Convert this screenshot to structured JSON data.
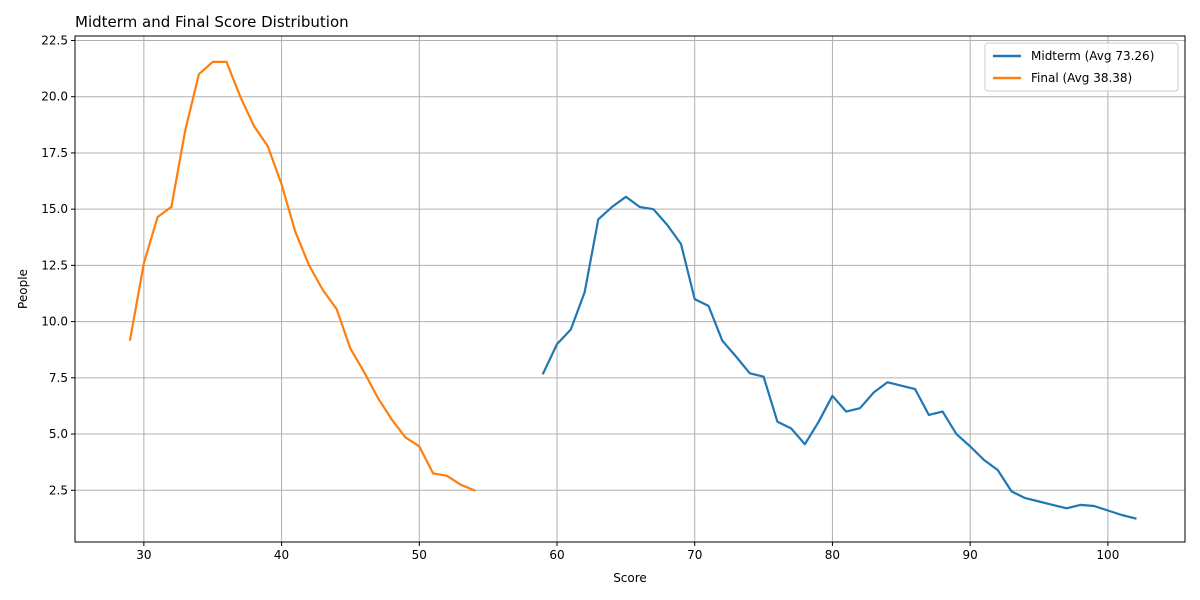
{
  "chart_data": {
    "type": "line",
    "title": "Midterm and Final Score Distribution",
    "xlabel": "Score",
    "ylabel": "People",
    "xlim": [
      25,
      105.6
    ],
    "ylim": [
      0.2,
      22.7
    ],
    "xticks": [
      30,
      40,
      50,
      60,
      70,
      80,
      90,
      100
    ],
    "yticks": [
      2.5,
      5.0,
      7.5,
      10.0,
      12.5,
      15.0,
      17.5,
      20.0,
      22.5
    ],
    "xtick_labels": [
      "30",
      "40",
      "50",
      "60",
      "70",
      "80",
      "90",
      "100"
    ],
    "ytick_labels": [
      "2.5",
      "5.0",
      "7.5",
      "10.0",
      "12.5",
      "15.0",
      "17.5",
      "20.0",
      "22.5"
    ],
    "grid": true,
    "legend_position": "top-right",
    "series": [
      {
        "name": "Midterm (Avg 73.26)",
        "color": "#1f77b4",
        "x": [
          59,
          60,
          61,
          62,
          63,
          64,
          65,
          66,
          67,
          68,
          69,
          70,
          71,
          72,
          73,
          74,
          75,
          76,
          77,
          78,
          79,
          80,
          81,
          82,
          83,
          84,
          85,
          86,
          87,
          88,
          89,
          90,
          91,
          92,
          93,
          94,
          95,
          96,
          97,
          98,
          99,
          100,
          101,
          102
        ],
        "y": [
          7.7,
          9.0,
          9.65,
          11.3,
          14.55,
          15.1,
          15.55,
          15.1,
          15.0,
          14.3,
          13.45,
          11.0,
          10.7,
          9.15,
          8.45,
          7.7,
          7.55,
          5.55,
          5.25,
          4.55,
          5.55,
          6.7,
          6.0,
          6.15,
          6.85,
          7.3,
          7.15,
          7.0,
          5.85,
          6.0,
          5.0,
          4.45,
          3.85,
          3.4,
          2.45,
          2.15,
          2.0,
          1.85,
          1.7,
          1.85,
          1.8,
          1.6,
          1.4,
          1.25
        ]
      },
      {
        "name": "Final (Avg 38.38)",
        "color": "#ff7f0e",
        "x": [
          29,
          30,
          31,
          32,
          33,
          34,
          35,
          36,
          37,
          38,
          39,
          40,
          41,
          42,
          43,
          44,
          45,
          46,
          47,
          48,
          49,
          50,
          51,
          52,
          53,
          54
        ],
        "y": [
          9.2,
          12.6,
          14.65,
          15.1,
          18.5,
          21.0,
          21.55,
          21.55,
          20.0,
          18.7,
          17.8,
          16.1,
          14.0,
          12.5,
          11.4,
          10.55,
          8.8,
          7.75,
          6.6,
          5.65,
          4.85,
          4.45,
          3.25,
          3.15,
          2.75,
          2.5
        ]
      }
    ]
  }
}
